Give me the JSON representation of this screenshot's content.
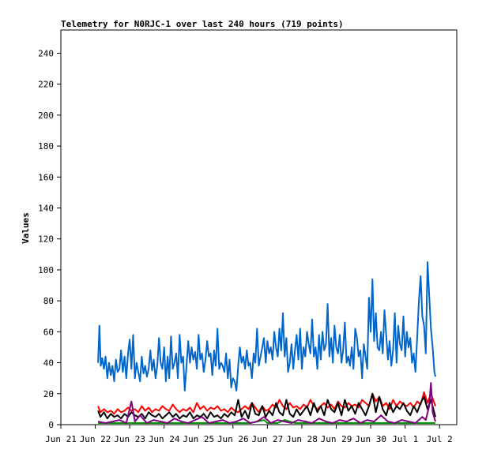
{
  "chart_data": {
    "type": "line",
    "title": "Telemetry for N0RJC-1 over last 240 hours (719 points)",
    "xlabel": "",
    "ylabel": "Values",
    "ylim": [
      0,
      255
    ],
    "xlim": [
      0,
      11.5
    ],
    "yticks": [
      0,
      20,
      40,
      60,
      80,
      100,
      120,
      140,
      160,
      180,
      200,
      220,
      240
    ],
    "xtick_labels": [
      "Jun 21",
      "Jun 22",
      "Jun 23",
      "Jun 24",
      "Jun 25",
      "Jun 26",
      "Jun 27",
      "Jun 28",
      "Jun 29",
      "Jun 30",
      "Jul 1",
      "Jul 2"
    ],
    "grid": false,
    "legend": "none",
    "series": [
      {
        "color": "#0066cc",
        "x": [
          1.08,
          1.12,
          1.16,
          1.2,
          1.25,
          1.3,
          1.35,
          1.4,
          1.45,
          1.5,
          1.55,
          1.6,
          1.65,
          1.7,
          1.75,
          1.8,
          1.85,
          1.9,
          1.95,
          2.0,
          2.05,
          2.1,
          2.15,
          2.2,
          2.25,
          2.3,
          2.35,
          2.4,
          2.45,
          2.5,
          2.55,
          2.6,
          2.65,
          2.7,
          2.75,
          2.8,
          2.85,
          2.9,
          2.95,
          3.0,
          3.05,
          3.1,
          3.15,
          3.2,
          3.25,
          3.3,
          3.35,
          3.4,
          3.45,
          3.5,
          3.55,
          3.6,
          3.65,
          3.7,
          3.75,
          3.8,
          3.85,
          3.9,
          3.95,
          4.0,
          4.05,
          4.1,
          4.15,
          4.2,
          4.25,
          4.3,
          4.35,
          4.4,
          4.45,
          4.5,
          4.55,
          4.6,
          4.65,
          4.7,
          4.75,
          4.8,
          4.85,
          4.9,
          4.95,
          5.0,
          5.05,
          5.1,
          5.15,
          5.2,
          5.25,
          5.3,
          5.35,
          5.4,
          5.45,
          5.5,
          5.55,
          5.6,
          5.65,
          5.7,
          5.75,
          5.8,
          5.85,
          5.9,
          5.95,
          6.0,
          6.05,
          6.1,
          6.15,
          6.2,
          6.25,
          6.3,
          6.35,
          6.4,
          6.45,
          6.5,
          6.55,
          6.6,
          6.65,
          6.7,
          6.75,
          6.8,
          6.85,
          6.9,
          6.95,
          7.0,
          7.05,
          7.1,
          7.15,
          7.2,
          7.25,
          7.3,
          7.35,
          7.4,
          7.45,
          7.5,
          7.55,
          7.6,
          7.65,
          7.7,
          7.75,
          7.8,
          7.85,
          7.9,
          7.95,
          8.0,
          8.05,
          8.1,
          8.15,
          8.2,
          8.25,
          8.3,
          8.35,
          8.4,
          8.45,
          8.5,
          8.55,
          8.6,
          8.65,
          8.7,
          8.75,
          8.8,
          8.85,
          8.9,
          8.95,
          9.0,
          9.05,
          9.1,
          9.15,
          9.2,
          9.25,
          9.3,
          9.35,
          9.4,
          9.45,
          9.5,
          9.55,
          9.6,
          9.65,
          9.7,
          9.75,
          9.8,
          9.85,
          9.9,
          9.95,
          10.0,
          10.05,
          10.1,
          10.15,
          10.2,
          10.25,
          10.3,
          10.35,
          10.4,
          10.45,
          10.5,
          10.55,
          10.6,
          10.65,
          10.7,
          10.75,
          10.8,
          10.85,
          10.88
        ],
        "y": [
          40,
          64,
          38,
          43,
          36,
          44,
          30,
          40,
          32,
          38,
          28,
          42,
          34,
          36,
          48,
          34,
          44,
          30,
          46,
          55,
          36,
          58,
          30,
          40,
          34,
          28,
          44,
          33,
          38,
          31,
          36,
          48,
          35,
          42,
          30,
          38,
          56,
          40,
          36,
          50,
          28,
          44,
          30,
          57,
          36,
          40,
          46,
          30,
          58,
          40,
          44,
          22,
          38,
          54,
          40,
          50,
          42,
          47,
          36,
          58,
          42,
          46,
          34,
          42,
          54,
          44,
          46,
          32,
          48,
          38,
          62,
          36,
          40,
          38,
          34,
          46,
          30,
          42,
          24,
          30,
          28,
          22,
          38,
          50,
          40,
          44,
          36,
          48,
          38,
          40,
          30,
          46,
          40,
          62,
          38,
          44,
          50,
          56,
          40,
          54,
          46,
          50,
          42,
          60,
          50,
          44,
          62,
          48,
          72,
          44,
          56,
          34,
          40,
          52,
          36,
          48,
          58,
          42,
          62,
          36,
          50,
          44,
          60,
          52,
          46,
          68,
          44,
          50,
          36,
          58,
          42,
          60,
          48,
          52,
          78,
          44,
          56,
          40,
          64,
          50,
          46,
          58,
          40,
          48,
          66,
          40,
          44,
          38,
          50,
          36,
          62,
          56,
          44,
          48,
          30,
          52,
          44,
          36,
          82,
          60,
          94,
          54,
          72,
          50,
          48,
          60,
          46,
          74,
          58,
          42,
          54,
          38,
          48,
          72,
          40,
          64,
          52,
          48,
          70,
          44,
          60,
          50,
          56,
          40,
          46,
          34,
          56,
          80,
          96,
          70,
          64,
          46,
          105,
          84,
          62,
          50,
          34,
          31
        ]
      },
      {
        "color": "#ff0000",
        "x": [
          1.08,
          1.15,
          1.25,
          1.35,
          1.45,
          1.55,
          1.65,
          1.75,
          1.85,
          1.95,
          2.05,
          2.15,
          2.25,
          2.35,
          2.45,
          2.55,
          2.65,
          2.75,
          2.85,
          2.95,
          3.05,
          3.15,
          3.25,
          3.35,
          3.45,
          3.55,
          3.65,
          3.75,
          3.85,
          3.95,
          4.05,
          4.15,
          4.25,
          4.35,
          4.45,
          4.55,
          4.65,
          4.75,
          4.85,
          4.95,
          5.05,
          5.15,
          5.25,
          5.35,
          5.45,
          5.55,
          5.65,
          5.75,
          5.85,
          5.95,
          6.05,
          6.15,
          6.25,
          6.35,
          6.45,
          6.55,
          6.65,
          6.75,
          6.85,
          6.95,
          7.05,
          7.15,
          7.25,
          7.35,
          7.45,
          7.55,
          7.65,
          7.75,
          7.85,
          7.95,
          8.05,
          8.15,
          8.25,
          8.35,
          8.45,
          8.55,
          8.65,
          8.75,
          8.85,
          8.95,
          9.05,
          9.15,
          9.25,
          9.35,
          9.45,
          9.55,
          9.65,
          9.75,
          9.85,
          9.95,
          10.05,
          10.15,
          10.25,
          10.35,
          10.45,
          10.55,
          10.65,
          10.75,
          10.88
        ],
        "y": [
          12,
          8,
          10,
          8,
          9,
          7,
          10,
          8,
          9,
          11,
          9,
          10,
          8,
          12,
          9,
          11,
          8,
          10,
          9,
          12,
          10,
          9,
          13,
          10,
          8,
          10,
          9,
          11,
          8,
          14,
          10,
          12,
          9,
          11,
          10,
          12,
          9,
          10,
          8,
          11,
          9,
          8,
          10,
          12,
          10,
          14,
          11,
          8,
          12,
          9,
          10,
          13,
          11,
          16,
          12,
          10,
          14,
          11,
          12,
          10,
          13,
          11,
          16,
          12,
          10,
          12,
          14,
          11,
          13,
          10,
          15,
          12,
          11,
          14,
          12,
          13,
          11,
          16,
          14,
          12,
          20,
          15,
          18,
          12,
          14,
          10,
          16,
          12,
          15,
          13,
          12,
          14,
          11,
          15,
          13,
          21,
          14,
          20,
          12
        ]
      },
      {
        "color": "#000000",
        "x": [
          1.08,
          1.15,
          1.25,
          1.35,
          1.45,
          1.55,
          1.65,
          1.75,
          1.85,
          1.95,
          2.05,
          2.15,
          2.25,
          2.35,
          2.45,
          2.55,
          2.65,
          2.75,
          2.85,
          2.95,
          3.05,
          3.15,
          3.25,
          3.35,
          3.45,
          3.55,
          3.65,
          3.75,
          3.85,
          3.95,
          4.05,
          4.15,
          4.25,
          4.35,
          4.45,
          4.55,
          4.65,
          4.75,
          4.85,
          4.95,
          5.05,
          5.15,
          5.25,
          5.35,
          5.45,
          5.55,
          5.65,
          5.75,
          5.85,
          5.95,
          6.05,
          6.15,
          6.25,
          6.35,
          6.45,
          6.55,
          6.65,
          6.75,
          6.85,
          6.95,
          7.05,
          7.15,
          7.25,
          7.35,
          7.45,
          7.55,
          7.65,
          7.75,
          7.85,
          7.95,
          8.05,
          8.15,
          8.25,
          8.35,
          8.45,
          8.55,
          8.65,
          8.75,
          8.85,
          8.95,
          9.05,
          9.15,
          9.25,
          9.35,
          9.45,
          9.55,
          9.65,
          9.75,
          9.85,
          9.95,
          10.05,
          10.15,
          10.25,
          10.35,
          10.45,
          10.55,
          10.65,
          10.75,
          10.88
        ],
        "y": [
          9,
          5,
          8,
          4,
          7,
          5,
          6,
          4,
          7,
          5,
          8,
          6,
          5,
          7,
          4,
          8,
          6,
          5,
          7,
          4,
          6,
          8,
          5,
          7,
          4,
          6,
          5,
          8,
          4,
          6,
          5,
          7,
          4,
          8,
          5,
          6,
          4,
          7,
          5,
          8,
          6,
          16,
          5,
          9,
          4,
          14,
          7,
          6,
          12,
          5,
          9,
          6,
          14,
          8,
          6,
          16,
          7,
          5,
          10,
          6,
          9,
          12,
          6,
          14,
          8,
          12,
          6,
          16,
          10,
          8,
          14,
          6,
          16,
          9,
          12,
          7,
          14,
          10,
          6,
          12,
          20,
          8,
          18,
          10,
          6,
          14,
          8,
          12,
          10,
          14,
          9,
          6,
          12,
          8,
          14,
          18,
          10,
          16,
          5
        ]
      },
      {
        "color": "#009900",
        "x": [
          1.08,
          1.5,
          2.0,
          2.5,
          3.0,
          3.5,
          4.0,
          4.5,
          5.0,
          5.5,
          5.7,
          5.9,
          6.0,
          6.3,
          6.5,
          6.8,
          7.0,
          7.5,
          8.0,
          8.5,
          9.0,
          9.5,
          10.0,
          10.5,
          10.88
        ],
        "y": [
          1,
          1,
          1,
          1,
          1,
          1,
          1,
          1,
          1,
          1,
          2,
          3,
          1,
          1,
          3,
          1,
          1,
          1,
          1,
          1,
          1,
          1,
          1,
          1,
          1
        ]
      },
      {
        "color": "#800080",
        "x": [
          1.08,
          1.3,
          1.5,
          1.7,
          1.9,
          2.05,
          2.15,
          2.3,
          2.5,
          2.7,
          2.9,
          3.1,
          3.3,
          3.5,
          3.7,
          3.9,
          4.1,
          4.3,
          4.5,
          4.7,
          4.9,
          5.1,
          5.3,
          5.5,
          5.7,
          5.9,
          6.1,
          6.3,
          6.5,
          6.7,
          6.9,
          7.1,
          7.3,
          7.5,
          7.7,
          7.9,
          8.1,
          8.3,
          8.5,
          8.7,
          8.9,
          9.1,
          9.3,
          9.5,
          9.7,
          9.9,
          10.1,
          10.3,
          10.5,
          10.6,
          10.7,
          10.75,
          10.8,
          10.88
        ],
        "y": [
          2,
          1,
          2,
          3,
          1,
          15,
          2,
          6,
          1,
          3,
          2,
          1,
          4,
          2,
          1,
          3,
          5,
          1,
          2,
          3,
          1,
          2,
          4,
          1,
          2,
          5,
          1,
          3,
          2,
          1,
          3,
          2,
          1,
          4,
          2,
          1,
          3,
          2,
          4,
          1,
          3,
          2,
          6,
          2,
          1,
          3,
          2,
          1,
          5,
          3,
          12,
          27,
          8,
          2
        ]
      }
    ]
  }
}
